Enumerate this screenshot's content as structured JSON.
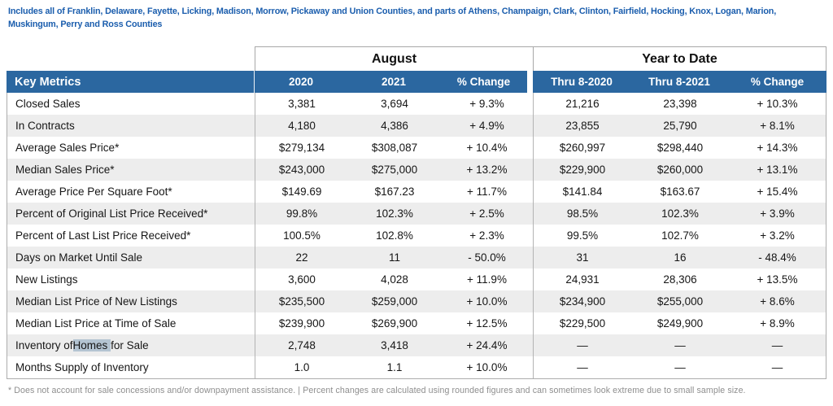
{
  "page": {
    "county_note": "Includes all of Franklin, Delaware, Fayette, Licking, Madison, Morrow, Pickaway and Union Counties, and parts of Athens, Champaign, Clark, Clinton, Fairfield, Hocking, Knox, Logan, Marion, Muskingum, Perry and Ross Counties",
    "footnote": "* Does not account for sale concessions and/or downpayment assistance. | Percent changes are calculated using rounded figures and can sometimes look extreme due to small sample size."
  },
  "table": {
    "group_headers": [
      {
        "label": "August",
        "span": 3
      },
      {
        "label": "Year to Date",
        "span": 3
      }
    ],
    "header": {
      "metrics_label": "Key Metrics",
      "columns": [
        "2020",
        "2021",
        "% Change",
        "Thru 8-2020",
        "Thru 8-2021",
        "% Change"
      ]
    },
    "rows": [
      {
        "metric": "Closed Sales",
        "values": [
          "3,381",
          "3,694",
          "+ 9.3%",
          "21,216",
          "23,398",
          "+ 10.3%"
        ]
      },
      {
        "metric": "In Contracts",
        "values": [
          "4,180",
          "4,386",
          "+ 4.9%",
          "23,855",
          "25,790",
          "+ 8.1%"
        ]
      },
      {
        "metric": "Average Sales Price*",
        "values": [
          "$279,134",
          "$308,087",
          "+ 10.4%",
          "$260,997",
          "$298,440",
          "+ 14.3%"
        ]
      },
      {
        "metric": "Median Sales Price*",
        "values": [
          "$243,000",
          "$275,000",
          "+ 13.2%",
          "$229,900",
          "$260,000",
          "+ 13.1%"
        ]
      },
      {
        "metric": "Average Price Per Square Foot*",
        "values": [
          "$149.69",
          "$167.23",
          "+ 11.7%",
          "$141.84",
          "$163.67",
          "+ 15.4%"
        ]
      },
      {
        "metric": "Percent of Original List Price Received*",
        "values": [
          "99.8%",
          "102.3%",
          "+ 2.5%",
          "98.5%",
          "102.3%",
          "+ 3.9%"
        ]
      },
      {
        "metric": "Percent of Last List Price Received*",
        "values": [
          "100.5%",
          "102.8%",
          "+ 2.3%",
          "99.5%",
          "102.7%",
          "+ 3.2%"
        ]
      },
      {
        "metric": "Days on Market Until Sale",
        "values": [
          "22",
          "11",
          "- 50.0%",
          "31",
          "16",
          "- 48.4%"
        ]
      },
      {
        "metric": "New Listings",
        "values": [
          "3,600",
          "4,028",
          "+ 11.9%",
          "24,931",
          "28,306",
          "+ 13.5%"
        ]
      },
      {
        "metric": "Median List Price of New Listings",
        "values": [
          "$235,500",
          "$259,000",
          "+ 10.0%",
          "$234,900",
          "$255,000",
          "+ 8.6%"
        ]
      },
      {
        "metric": "Median List Price at Time of Sale",
        "values": [
          "$239,900",
          "$269,900",
          "+ 12.5%",
          "$229,500",
          "$249,900",
          "+ 8.9%"
        ]
      },
      {
        "metric": "Inventory of Homes for Sale",
        "highlight_word": "Homes",
        "values": [
          "2,748",
          "3,418",
          "+ 24.4%",
          "—",
          "—",
          "—"
        ]
      },
      {
        "metric": "Months Supply of Inventory",
        "values": [
          "1.0",
          "1.1",
          "+ 10.0%",
          "—",
          "—",
          "—"
        ]
      }
    ]
  },
  "colors": {
    "header_blue": "#2b67a0",
    "note_blue": "#1a5dad",
    "row_stripe": "#ededed",
    "border_gray": "#adadad",
    "footnote_gray": "#8e8e8e",
    "selection_highlight": "#b4c4d2"
  }
}
